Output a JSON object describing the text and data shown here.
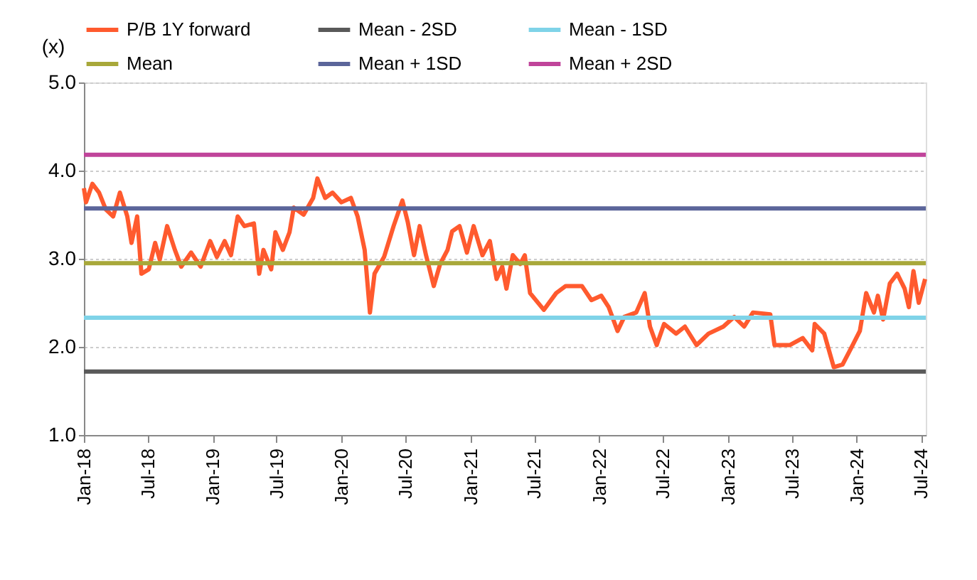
{
  "chart_data": {
    "type": "line",
    "ylabel": "(x)",
    "xlim": [
      "2018-01-01",
      "2024-07-15"
    ],
    "xticks": [
      {
        "value": "2018-01-01",
        "label": "Jan-18"
      },
      {
        "value": "2018-07-01",
        "label": "Jul-18"
      },
      {
        "value": "2019-01-01",
        "label": "Jan-19"
      },
      {
        "value": "2019-07-01",
        "label": "Jul-19"
      },
      {
        "value": "2020-01-01",
        "label": "Jan-20"
      },
      {
        "value": "2020-07-01",
        "label": "Jul-20"
      },
      {
        "value": "2021-01-01",
        "label": "Jan-21"
      },
      {
        "value": "2021-07-01",
        "label": "Jul-21"
      },
      {
        "value": "2022-01-01",
        "label": "Jan-22"
      },
      {
        "value": "2022-07-01",
        "label": "Jul-22"
      },
      {
        "value": "2023-01-01",
        "label": "Jan-23"
      },
      {
        "value": "2023-07-01",
        "label": "Jul-23"
      },
      {
        "value": "2024-01-01",
        "label": "Jan-24"
      },
      {
        "value": "2024-07-01",
        "label": "Jul-24"
      }
    ],
    "ylim": [
      1.0,
      5.0
    ],
    "yticks": [
      {
        "value": 1.0,
        "label": "1.0"
      },
      {
        "value": 2.0,
        "label": "2.0"
      },
      {
        "value": 3.0,
        "label": "3.0"
      },
      {
        "value": 4.0,
        "label": "4.0"
      },
      {
        "value": 5.0,
        "label": "5.0"
      }
    ],
    "grid": "y",
    "legend": "top",
    "marker": "none",
    "line_style": "solid",
    "series": [
      {
        "name": "P/B 1Y forward",
        "color": "#ff5a2e",
        "x": [
          "2018-01-01",
          "2018-01-07",
          "2018-01-25",
          "2018-02-13",
          "2018-03-04",
          "2018-03-25",
          "2018-04-13",
          "2018-05-04",
          "2018-05-16",
          "2018-06-01",
          "2018-06-13",
          "2018-07-04",
          "2018-07-22",
          "2018-08-04",
          "2018-08-25",
          "2018-09-16",
          "2018-10-04",
          "2018-11-01",
          "2018-11-28",
          "2018-12-25",
          "2019-01-13",
          "2019-02-04",
          "2019-02-22",
          "2019-03-13",
          "2019-04-01",
          "2019-04-28",
          "2019-05-13",
          "2019-05-25",
          "2019-06-16",
          "2019-06-28",
          "2019-07-19",
          "2019-08-07",
          "2019-08-19",
          "2019-09-16",
          "2019-10-13",
          "2019-10-25",
          "2019-11-16",
          "2019-12-07",
          "2020-01-01",
          "2020-01-28",
          "2020-02-16",
          "2020-03-07",
          "2020-03-22",
          "2020-04-04",
          "2020-05-01",
          "2020-05-28",
          "2020-06-22",
          "2020-07-07",
          "2020-07-25",
          "2020-08-10",
          "2020-08-28",
          "2020-09-19",
          "2020-10-07",
          "2020-10-28",
          "2020-11-10",
          "2020-12-01",
          "2020-12-22",
          "2021-01-10",
          "2021-02-04",
          "2021-02-25",
          "2021-03-16",
          "2021-04-01",
          "2021-04-13",
          "2021-05-01",
          "2021-05-22",
          "2021-06-04",
          "2021-06-19",
          "2021-07-28",
          "2021-09-01",
          "2021-09-28",
          "2021-11-13",
          "2021-12-10",
          "2022-01-07",
          "2022-01-28",
          "2022-02-22",
          "2022-03-13",
          "2022-04-16",
          "2022-05-10",
          "2022-05-25",
          "2022-06-13",
          "2022-07-04",
          "2022-08-07",
          "2022-09-01",
          "2022-10-04",
          "2022-11-07",
          "2022-12-19",
          "2023-01-19",
          "2023-02-16",
          "2023-03-13",
          "2023-05-01",
          "2023-05-13",
          "2023-06-25",
          "2023-08-01",
          "2023-08-28",
          "2023-09-04",
          "2023-10-01",
          "2023-10-28",
          "2023-11-22",
          "2023-12-13",
          "2024-01-10",
          "2024-01-28",
          "2024-02-19",
          "2024-03-01",
          "2024-03-16",
          "2024-04-04",
          "2024-04-25",
          "2024-05-16",
          "2024-05-28",
          "2024-06-10",
          "2024-06-25",
          "2024-07-13"
        ],
        "values": [
          3.8,
          3.64,
          3.85,
          3.75,
          3.56,
          3.48,
          3.75,
          3.48,
          3.18,
          3.48,
          2.83,
          2.88,
          3.18,
          2.99,
          3.37,
          3.1,
          2.91,
          3.07,
          2.91,
          3.2,
          3.02,
          3.2,
          3.04,
          3.48,
          3.37,
          3.4,
          2.83,
          3.1,
          2.88,
          3.3,
          3.1,
          3.3,
          3.58,
          3.5,
          3.69,
          3.91,
          3.69,
          3.75,
          3.64,
          3.69,
          3.48,
          3.1,
          2.39,
          2.83,
          3.02,
          3.37,
          3.66,
          3.42,
          3.04,
          3.37,
          3.04,
          2.69,
          2.94,
          3.1,
          3.31,
          3.37,
          3.07,
          3.37,
          3.04,
          3.2,
          2.77,
          2.91,
          2.66,
          3.04,
          2.94,
          3.04,
          2.61,
          2.42,
          2.61,
          2.69,
          2.69,
          2.53,
          2.58,
          2.45,
          2.18,
          2.34,
          2.39,
          2.61,
          2.23,
          2.02,
          2.26,
          2.15,
          2.23,
          2.02,
          2.15,
          2.23,
          2.34,
          2.23,
          2.39,
          2.37,
          2.02,
          2.02,
          2.1,
          1.96,
          2.26,
          2.15,
          1.77,
          1.8,
          1.96,
          2.18,
          2.61,
          2.39,
          2.58,
          2.31,
          2.72,
          2.83,
          2.66,
          2.45,
          2.86,
          2.5,
          2.77
        ]
      },
      {
        "name": "Mean - 2SD",
        "color": "#595959",
        "x": [
          "2018-01-01",
          "2024-07-15"
        ],
        "values": [
          1.72,
          1.72
        ]
      },
      {
        "name": "Mean - 1SD",
        "color": "#7fd3e8",
        "x": [
          "2018-01-01",
          "2024-07-15"
        ],
        "values": [
          2.33,
          2.33
        ]
      },
      {
        "name": "Mean",
        "color": "#a8a83a",
        "x": [
          "2018-01-01",
          "2024-07-15"
        ],
        "values": [
          2.95,
          2.95
        ]
      },
      {
        "name": "Mean + 1SD",
        "color": "#5b659a",
        "x": [
          "2018-01-01",
          "2024-07-15"
        ],
        "values": [
          3.57,
          3.57
        ]
      },
      {
        "name": "Mean + 2SD",
        "color": "#c0449a",
        "x": [
          "2018-01-01",
          "2024-07-15"
        ],
        "values": [
          4.18,
          4.18
        ]
      }
    ]
  }
}
